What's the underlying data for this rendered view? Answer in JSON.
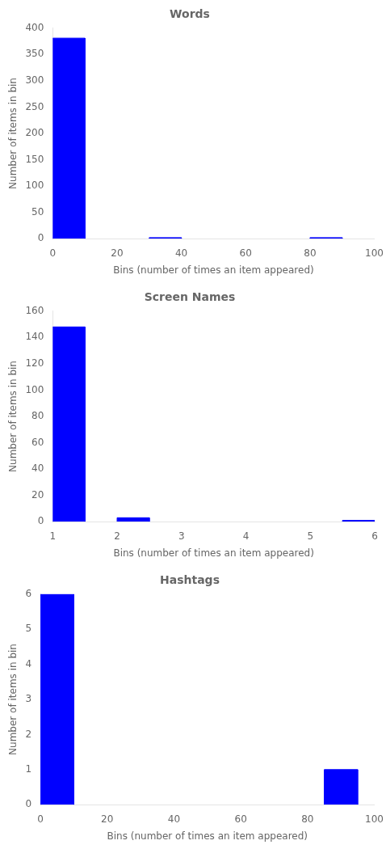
{
  "chart_data": [
    {
      "type": "bar",
      "title": "Words",
      "x_label": "Bins (number of times an item appeared)",
      "y_label": "Number of items in bin",
      "x": [
        0,
        30,
        80
      ],
      "widths": [
        10,
        10,
        10
      ],
      "values": [
        381,
        2,
        2
      ],
      "color": "#0000ff",
      "xlim": [
        0,
        100
      ],
      "ylim": [
        0,
        400
      ],
      "xticks": [
        0,
        20,
        40,
        60,
        80,
        100
      ],
      "yticks": [
        0,
        50,
        100,
        150,
        200,
        250,
        300,
        350,
        400
      ],
      "grid": false
    },
    {
      "type": "bar",
      "title": "Screen Names",
      "x_label": "Bins (number of times an item appeared)",
      "y_label": "Number of items in bin",
      "x": [
        1.0,
        2.0,
        5.5
      ],
      "widths": [
        0.5,
        0.5,
        0.5
      ],
      "values": [
        148,
        3,
        1
      ],
      "color": "#0000ff",
      "xlim": [
        1,
        6
      ],
      "ylim": [
        0,
        160
      ],
      "xticks": [
        1,
        2,
        3,
        4,
        5,
        6
      ],
      "yticks": [
        0,
        20,
        40,
        60,
        80,
        100,
        120,
        140,
        160
      ],
      "grid": false
    },
    {
      "type": "bar",
      "title": "Hashtags",
      "x_label": "Bins (number of times an item appeared)",
      "y_label": "Number of items in bin",
      "x": [
        0,
        85
      ],
      "widths": [
        10,
        10
      ],
      "values": [
        6,
        1
      ],
      "color": "#0000ff",
      "xlim": [
        0,
        100
      ],
      "ylim": [
        0,
        6
      ],
      "xticks": [
        0,
        20,
        40,
        60,
        80,
        100
      ],
      "yticks": [
        0,
        1,
        2,
        3,
        4,
        5,
        6
      ],
      "grid": false
    }
  ]
}
